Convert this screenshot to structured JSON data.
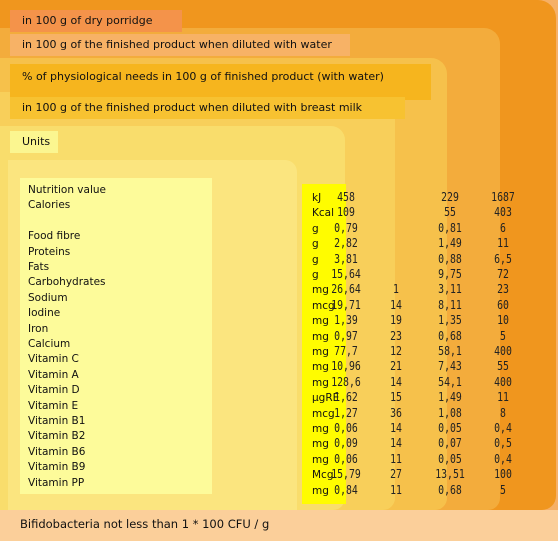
{
  "headers": {
    "dry": "in 100 g of dry porridge",
    "water": "in 100 g of the finished product when diluted with water",
    "physiological": "% of physiological needs in 100 g of finished product (with water)",
    "breast_milk": "in 100 g of the finished product when diluted with breast milk",
    "units": "Units"
  },
  "nutrients": [
    "Nutrition value",
    "Calories",
    "",
    "Food fibre",
    "Proteins",
    "Fats",
    "Carbohydrates",
    "Sodium",
    "Iodine",
    "Iron",
    "Calcium",
    "Vitamin C",
    "Vitamin A",
    "Vitamin D",
    "Vitamin E",
    "Vitamin B1",
    "Vitamin B2",
    "Vitamin B6",
    "Vitamin B9",
    "Vitamin PP"
  ],
  "units": [
    "kJ",
    "Kcal",
    "g",
    "g",
    "g",
    "g",
    "mg",
    "mcg",
    "mg",
    "mg",
    "mg",
    "mg",
    "mg",
    "µgRE",
    "mcg",
    "mg",
    "mg",
    "mg",
    "Mcg",
    "mg"
  ],
  "breast_milk_values": [
    "458",
    "109",
    "0,79",
    "2,82",
    "3,81",
    "15,64",
    "26,64",
    "19,71",
    "1,39",
    "0,97",
    "77,7",
    "10,96",
    "128,6",
    "1,62",
    "1,27",
    "0,06",
    "0,09",
    "0,06",
    "15,79",
    "0,84"
  ],
  "physiological_values": [
    "",
    "",
    "",
    "",
    "",
    "",
    "1",
    "14",
    "19",
    "23",
    "12",
    "21",
    "14",
    "15",
    "36",
    "14",
    "14",
    "11",
    "27",
    "11"
  ],
  "water_values": [
    "229",
    "55",
    "0,81",
    "1,49",
    "0,88",
    "9,75",
    "3,11",
    "8,11",
    "1,35",
    "0,68",
    "58,1",
    "7,43",
    "54,1",
    "1,49",
    "1,08",
    "0,05",
    "0,07",
    "0,05",
    "13,51",
    "0,68"
  ],
  "dry_values": [
    "1687",
    "403",
    "6",
    "11",
    "6,5",
    "72",
    "23",
    "60",
    "10",
    "5",
    "400",
    "55",
    "400",
    "11",
    "8",
    "0,4",
    "0,5",
    "0,4",
    "100",
    "5"
  ],
  "footer": "Bifidobacteria not less than 1 * 100 CFU / g"
}
